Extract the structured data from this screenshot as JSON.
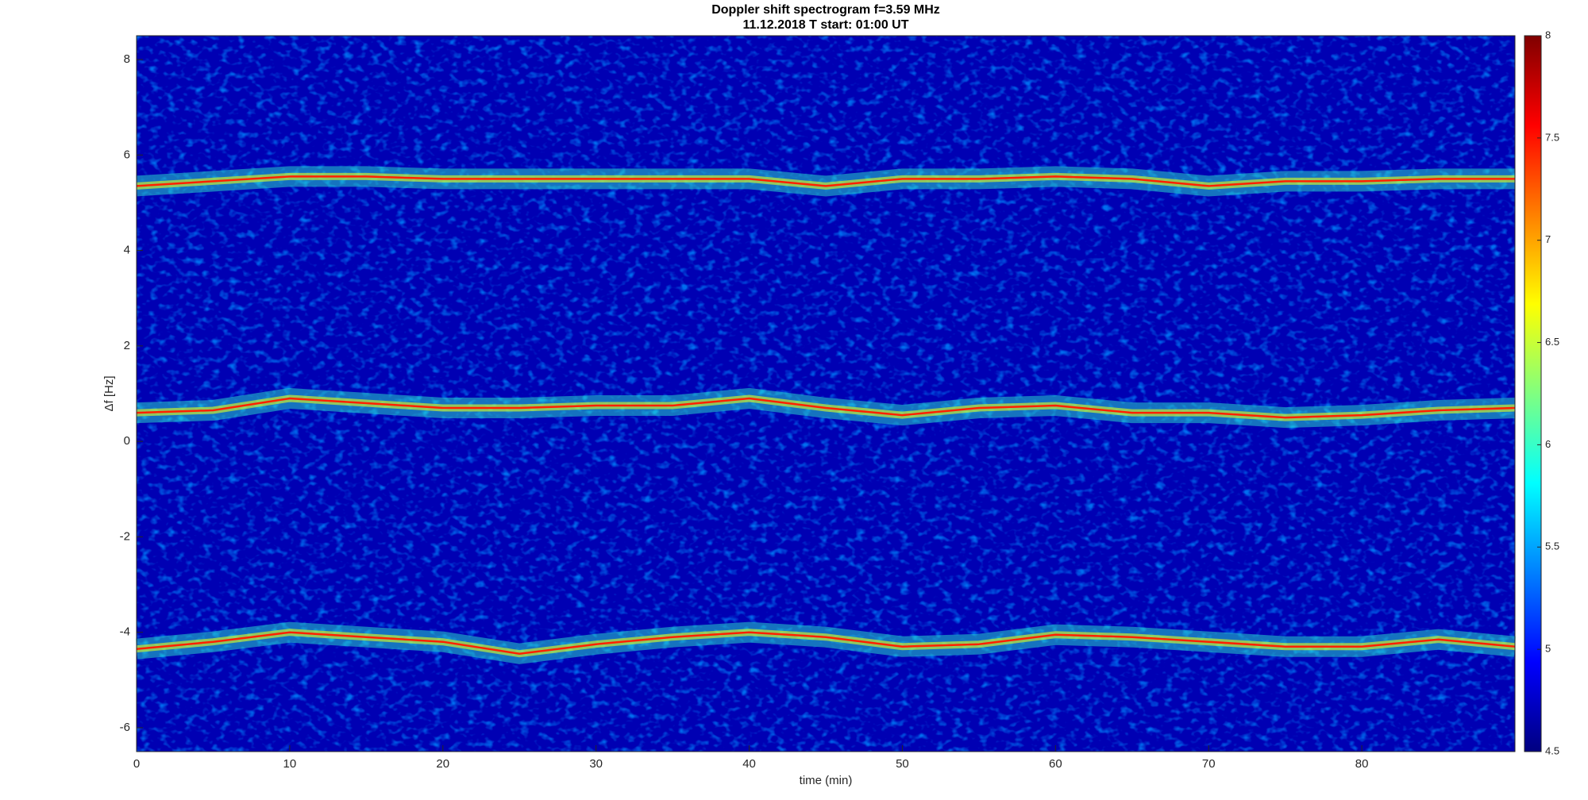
{
  "chart_data": {
    "type": "spectrogram",
    "title": "Doppler shift spectrogram f=3.59 MHz",
    "subtitle": "11.12.2018   T start: 01:00 UT",
    "x_label": "time (min)",
    "y_label": "Δf [Hz]",
    "x": [
      0,
      5,
      10,
      15,
      20,
      25,
      30,
      35,
      40,
      45,
      50,
      55,
      60,
      65,
      70,
      75,
      80,
      85,
      90
    ],
    "series": [
      {
        "color": "#ff2000",
        "values": [
          5.35,
          5.45,
          5.55,
          5.55,
          5.5,
          5.5,
          5.5,
          5.5,
          5.5,
          5.35,
          5.5,
          5.5,
          5.55,
          5.5,
          5.35,
          5.45,
          5.45,
          5.5,
          5.5
        ]
      },
      {
        "color": "#ff2000",
        "values": [
          0.6,
          0.65,
          0.9,
          0.8,
          0.7,
          0.7,
          0.75,
          0.75,
          0.9,
          0.7,
          0.55,
          0.7,
          0.75,
          0.6,
          0.6,
          0.5,
          0.55,
          0.65,
          0.7
        ]
      },
      {
        "color": "#ff2000",
        "values": [
          -4.35,
          -4.2,
          -4.0,
          -4.1,
          -4.2,
          -4.45,
          -4.25,
          -4.1,
          -4.0,
          -4.1,
          -4.3,
          -4.25,
          -4.05,
          -4.1,
          -4.2,
          -4.3,
          -4.3,
          -4.15,
          -4.3
        ]
      }
    ],
    "xlim": [
      0,
      90
    ],
    "xticks": [
      0,
      10,
      20,
      30,
      40,
      50,
      60,
      70,
      80
    ],
    "ylim": [
      -6.5,
      8.5
    ],
    "yticks": [
      -6,
      -4,
      -2,
      0,
      2,
      4,
      6,
      8
    ],
    "colormap": "jet",
    "clim": [
      4.5,
      8
    ],
    "cticks": [
      4.5,
      5,
      5.5,
      6,
      6.5,
      7,
      7.5,
      8
    ]
  }
}
